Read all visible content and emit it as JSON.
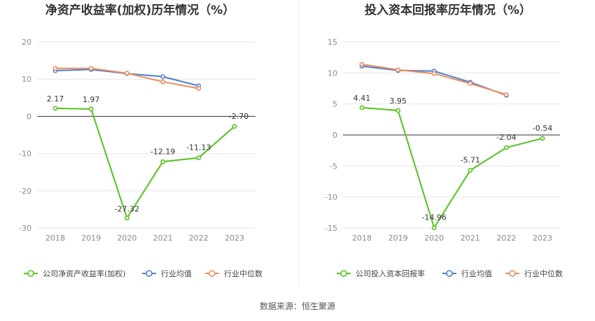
{
  "charts": [
    {
      "title": "净资产收益率(加权)历年情况（%）",
      "type": "line",
      "categories": [
        "2018",
        "2019",
        "2020",
        "2021",
        "2022",
        "2023"
      ],
      "ylim": [
        -30,
        20
      ],
      "yticks": [
        20,
        10,
        0,
        -10,
        -20,
        -30
      ],
      "series": [
        {
          "name": "公司净资产收益率(加权)",
          "color": "#52c41a",
          "values": [
            2.17,
            1.97,
            -27.32,
            -12.19,
            -11.13,
            -2.7
          ],
          "labels": [
            "2.17",
            "1.97",
            "-27.32",
            "-12.19",
            "-11.13",
            "-2.70"
          ]
        },
        {
          "name": "行业均值",
          "color": "#4a7fd6",
          "values": [
            12.3,
            12.6,
            11.5,
            10.7,
            8.2,
            null
          ]
        },
        {
          "name": "行业中位数",
          "color": "#f08a5d",
          "values": [
            12.9,
            12.9,
            11.6,
            9.3,
            7.5,
            null
          ]
        }
      ]
    },
    {
      "title": "投入资本回报率历年情况（%）",
      "type": "line",
      "categories": [
        "2018",
        "2019",
        "2020",
        "2021",
        "2022",
        "2023"
      ],
      "ylim": [
        -15,
        15
      ],
      "yticks": [
        15,
        10,
        5,
        0,
        -5,
        -10,
        -15
      ],
      "series": [
        {
          "name": "公司投入资本回报率",
          "color": "#52c41a",
          "values": [
            4.41,
            3.95,
            -14.96,
            -5.71,
            -2.04,
            -0.54
          ],
          "labels": [
            "4.41",
            "3.95",
            "-14.96",
            "-5.71",
            "-2.04",
            "-0.54"
          ]
        },
        {
          "name": "行业均值",
          "color": "#4a7fd6",
          "values": [
            11.1,
            10.4,
            10.3,
            8.5,
            6.4,
            null
          ]
        },
        {
          "name": "行业中位数",
          "color": "#f08a5d",
          "values": [
            11.4,
            10.5,
            9.9,
            8.3,
            6.5,
            null
          ]
        }
      ]
    }
  ],
  "chart_data": [
    {
      "type": "line",
      "title": "净资产收益率(加权)历年情况（%）",
      "x": [
        "2018",
        "2019",
        "2020",
        "2021",
        "2022",
        "2023"
      ],
      "ylim": [
        -30,
        20
      ],
      "series": [
        {
          "name": "公司净资产收益率(加权)",
          "values": [
            2.17,
            1.97,
            -27.32,
            -12.19,
            -11.13,
            -2.7
          ]
        },
        {
          "name": "行业均值",
          "values": [
            12.3,
            12.6,
            11.5,
            10.7,
            8.2,
            null
          ]
        },
        {
          "name": "行业中位数",
          "values": [
            12.9,
            12.9,
            11.6,
            9.3,
            7.5,
            null
          ]
        }
      ],
      "legend": "bottom"
    },
    {
      "type": "line",
      "title": "投入资本回报率历年情况（%）",
      "x": [
        "2018",
        "2019",
        "2020",
        "2021",
        "2022",
        "2023"
      ],
      "ylim": [
        -15,
        15
      ],
      "series": [
        {
          "name": "公司投入资本回报率",
          "values": [
            4.41,
            3.95,
            -14.96,
            -5.71,
            -2.04,
            -0.54
          ]
        },
        {
          "name": "行业均值",
          "values": [
            11.1,
            10.4,
            10.3,
            8.5,
            6.4,
            null
          ]
        },
        {
          "name": "行业中位数",
          "values": [
            11.4,
            10.5,
            9.9,
            8.3,
            6.5,
            null
          ]
        }
      ],
      "legend": "bottom"
    }
  ],
  "source": "数据来源：恒生聚源"
}
